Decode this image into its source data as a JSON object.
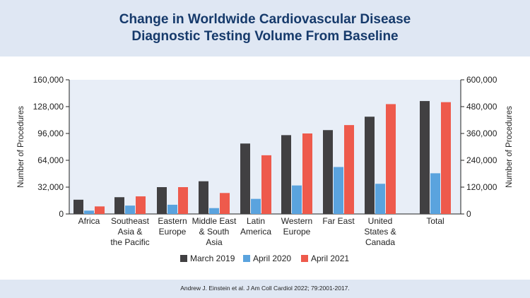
{
  "page": {
    "title_line1": "Change in Worldwide Cardiovascular Disease",
    "title_line2": "Diagnostic Testing Volume From Baseline",
    "citation": "Andrew J. Einstein et al. J Am Coll Cardiol 2022; 79:2001-2017."
  },
  "chart_data": {
    "type": "bar",
    "title": "Change in Worldwide Cardiovascular Disease Diagnostic Testing Volume From Baseline",
    "ylabel": "Number of Procedures",
    "y2label": "Number of Procedures",
    "ylim": [
      0,
      160000
    ],
    "y_ticks": [
      "0",
      "32,000",
      "64,000",
      "96,000",
      "128,000",
      "160,000"
    ],
    "y2lim": [
      0,
      600000
    ],
    "y2_ticks": [
      "0",
      "120,000",
      "240,000",
      "360,000",
      "480,000",
      "600,000"
    ],
    "categories": [
      [
        "Africa"
      ],
      [
        "Southeast",
        "Asia &",
        "the Pacific"
      ],
      [
        "Eastern",
        "Europe"
      ],
      [
        "Middle East",
        "& South",
        "Asia"
      ],
      [
        "Latin",
        "America"
      ],
      [
        "Western",
        "Europe"
      ],
      [
        "Far East"
      ],
      [
        "United",
        "States &",
        "Canada"
      ],
      [
        "Total"
      ]
    ],
    "category_axis": [
      "left",
      "left",
      "left",
      "left",
      "left",
      "left",
      "left",
      "left",
      "right"
    ],
    "series": [
      {
        "name": "March 2019",
        "color": "#414042",
        "values": [
          17000,
          20000,
          32000,
          39000,
          84000,
          94000,
          100000,
          116000,
          505000
        ]
      },
      {
        "name": "April 2020",
        "color": "#5aa3de",
        "values": [
          4000,
          10000,
          11000,
          7000,
          18000,
          34000,
          56000,
          36000,
          182000
        ]
      },
      {
        "name": "April 2021",
        "color": "#ee5a4c",
        "values": [
          9000,
          21000,
          32000,
          25000,
          70000,
          96000,
          106000,
          131000,
          500000
        ]
      }
    ],
    "grid": false,
    "legend_position": "bottom"
  }
}
